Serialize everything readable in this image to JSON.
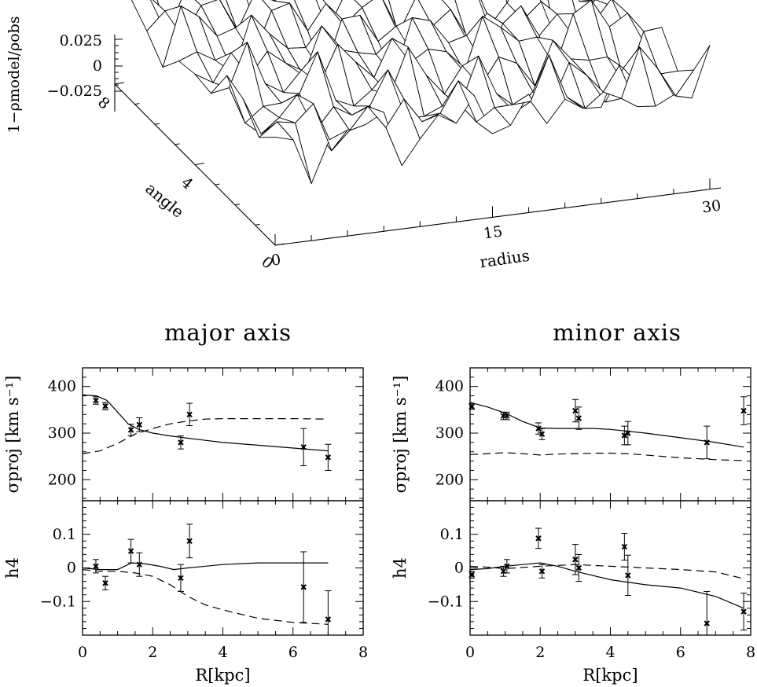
{
  "surface": {
    "zlabel": "1−ρmodel/ρobs",
    "zticks": [
      "0.025",
      "0",
      "−0.025"
    ],
    "angle_label": "angle",
    "angle_ticks": [
      "0",
      "4",
      "8"
    ],
    "radius_label": "radius",
    "radius_ticks": [
      "0",
      "15",
      "30"
    ],
    "angle_range": [
      0,
      8
    ],
    "radius_range": [
      0,
      30
    ],
    "z_range": [
      -0.025,
      0.025
    ]
  },
  "chart_data": [
    {
      "type": "scatter",
      "title": "major axis",
      "xlabel": "R[kpc]",
      "ylabel": "σproj [km s⁻¹]",
      "xlim": [
        0,
        8
      ],
      "ylim": [
        155,
        440
      ],
      "xticks": [
        "0",
        "2",
        "4",
        "6",
        "8"
      ],
      "yticks": [
        "200",
        "300",
        "400"
      ],
      "points": {
        "x": [
          0.38,
          0.65,
          1.38,
          1.62,
          2.8,
          3.05,
          6.3,
          7.0
        ],
        "y": [
          370,
          358,
          307,
          318,
          280,
          340,
          270,
          248
        ],
        "err": [
          8,
          8,
          12,
          15,
          14,
          24,
          40,
          28
        ]
      },
      "model_solid": {
        "x": [
          0,
          0.4,
          0.7,
          1,
          1.3,
          1.6,
          2,
          2.5,
          3,
          4,
          5,
          6,
          7
        ],
        "y": [
          382,
          380,
          370,
          345,
          320,
          308,
          300,
          294,
          289,
          280,
          274,
          268,
          262
        ]
      },
      "model_dashed": {
        "x": [
          0,
          0.5,
          1,
          1.5,
          2,
          2.5,
          3,
          3.5,
          4,
          5,
          6,
          7
        ],
        "y": [
          256,
          262,
          278,
          298,
          310,
          320,
          326,
          330,
          331,
          331,
          331,
          330
        ]
      }
    },
    {
      "type": "scatter",
      "title": "",
      "xlabel": "R[kpc]",
      "ylabel": "h4",
      "xlim": [
        0,
        8
      ],
      "ylim": [
        -0.2,
        0.2
      ],
      "xticks": [
        "0",
        "2",
        "4",
        "6",
        "8"
      ],
      "yticks": [
        "0.1",
        "0",
        "−0.1"
      ],
      "points": {
        "x": [
          0.38,
          0.65,
          1.38,
          1.62,
          2.8,
          3.05,
          6.3,
          7.0
        ],
        "y": [
          0.005,
          -0.045,
          0.05,
          0.01,
          -0.03,
          0.08,
          -0.057,
          -0.153
        ],
        "err": [
          0.02,
          0.02,
          0.035,
          0.035,
          0.04,
          0.05,
          0.105,
          0.085
        ]
      },
      "model_solid": {
        "x": [
          0,
          0.5,
          1,
          1.4,
          1.8,
          2.2,
          2.6,
          3,
          4,
          5,
          6,
          7
        ],
        "y": [
          0,
          -0.005,
          -0.005,
          0.015,
          0.012,
          0.005,
          -0.005,
          0,
          0.01,
          0.015,
          0.015,
          0.015
        ]
      },
      "model_dashed": {
        "x": [
          0,
          0.5,
          1,
          1.5,
          2,
          2.5,
          3,
          3.5,
          4,
          5,
          6,
          7
        ],
        "y": [
          -0.005,
          -0.01,
          -0.01,
          -0.015,
          -0.025,
          -0.05,
          -0.085,
          -0.11,
          -0.125,
          -0.15,
          -0.162,
          -0.168
        ]
      }
    },
    {
      "type": "scatter",
      "title": "minor axis",
      "xlabel": "R[kpc]",
      "ylabel": "σproj [km s⁻¹]",
      "xlim": [
        0,
        8
      ],
      "ylim": [
        155,
        440
      ],
      "xticks": [
        "0",
        "2",
        "4",
        "6",
        "8"
      ],
      "yticks": [
        "200",
        "300",
        "400"
      ],
      "points": {
        "x": [
          0.05,
          0.95,
          1.05,
          1.95,
          2.05,
          3.0,
          3.1,
          4.4,
          4.5,
          6.75,
          7.8
        ],
        "y": [
          357,
          337,
          337,
          310,
          298,
          348,
          332,
          295,
          300,
          280,
          348
        ],
        "err": [
          6,
          8,
          8,
          12,
          12,
          24,
          24,
          20,
          25,
          35,
          30
        ]
      },
      "model_solid": {
        "x": [
          0,
          0.5,
          1,
          1.5,
          2,
          2.5,
          3,
          3.5,
          4,
          5,
          6,
          7,
          7.8
        ],
        "y": [
          366,
          356,
          343,
          325,
          311,
          310,
          310,
          310,
          308,
          300,
          290,
          280,
          270
        ]
      },
      "model_dashed": {
        "x": [
          0,
          0.5,
          1,
          1.5,
          2,
          2.5,
          3,
          3.5,
          4,
          4.5,
          5,
          6,
          7,
          7.8
        ],
        "y": [
          254,
          256,
          258,
          256,
          253,
          255,
          256,
          257,
          257,
          256,
          253,
          247,
          243,
          241
        ]
      }
    },
    {
      "type": "scatter",
      "title": "",
      "xlabel": "R[kpc]",
      "ylabel": "h4",
      "xlim": [
        0,
        8
      ],
      "ylim": [
        -0.2,
        0.2
      ],
      "xticks": [
        "0",
        "2",
        "4",
        "6",
        "8"
      ],
      "yticks": [
        "0.1",
        "0",
        "−0.1"
      ],
      "points": {
        "x": [
          0.05,
          0.95,
          1.05,
          1.95,
          2.05,
          3.0,
          3.1,
          4.4,
          4.5,
          6.75,
          7.8
        ],
        "y": [
          -0.02,
          -0.01,
          0.005,
          0.088,
          -0.01,
          0.025,
          0.0,
          0.063,
          -0.022,
          -0.165,
          -0.13
        ],
        "err": [
          0.01,
          0.015,
          0.02,
          0.03,
          0.02,
          0.045,
          0.04,
          0.04,
          0.06,
          0.095,
          0.055
        ]
      },
      "model_solid": {
        "x": [
          0,
          0.5,
          1,
          1.5,
          2,
          2.5,
          3,
          4,
          5,
          6,
          7,
          7.8
        ],
        "y": [
          -0.005,
          -0.002,
          0.005,
          0.01,
          0.015,
          0.005,
          -0.01,
          -0.035,
          -0.05,
          -0.06,
          -0.085,
          -0.12
        ]
      },
      "model_dashed": {
        "x": [
          0,
          0.5,
          1,
          2,
          3,
          4,
          5,
          6,
          7,
          7.8
        ],
        "y": [
          0.005,
          0.002,
          -0.002,
          0.005,
          0.01,
          0.005,
          0,
          -0.005,
          -0.012,
          -0.032
        ]
      }
    }
  ]
}
